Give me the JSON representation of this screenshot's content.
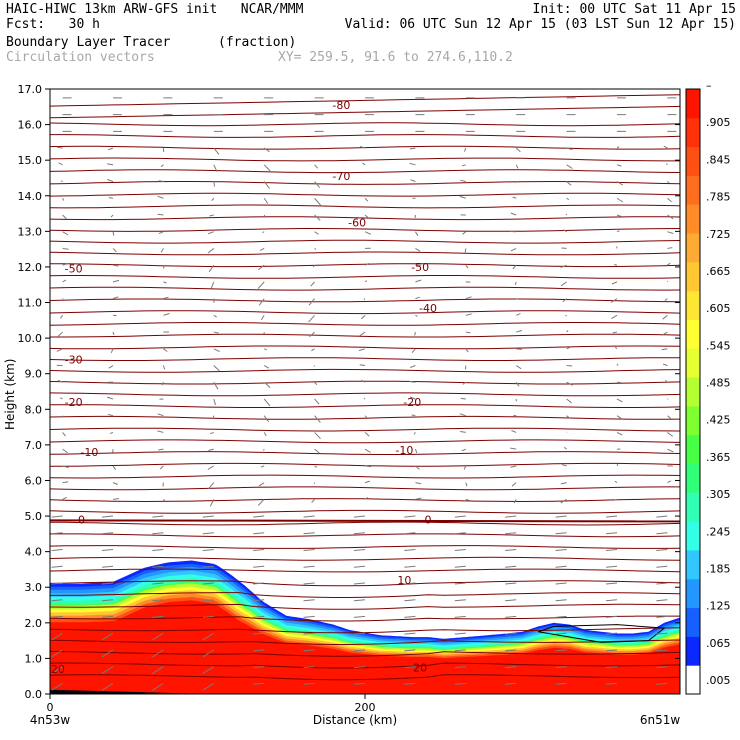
{
  "header": {
    "model": "HAIC-HIWC 13km ARW-GFS init   NCAR/MMM",
    "init": "Init: 00 UTC Sat 11 Apr 15",
    "fcst": "Fcst:   30 h",
    "valid": "Valid: 06 UTC Sun 12 Apr 15 (03 LST Sun 12 Apr 15)",
    "field": "Boundary Layer Tracer",
    "units": "(fraction)",
    "vectors": "Circulation vectors",
    "xy": "XY= 259.5, 91.6 to 274.6,110.2"
  },
  "colors": {
    "contour": "#7b0000",
    "vector": "#7a7a7a",
    "scale": [
      "#ffffff",
      "#0a28ff",
      "#1660ff",
      "#2496ff",
      "#32c8ff",
      "#32ffe6",
      "#32ffb4",
      "#32ff78",
      "#46ff46",
      "#7dff32",
      "#b4ff32",
      "#e6ff32",
      "#ffff32",
      "#ffe632",
      "#ffc832",
      "#ffaa32",
      "#ff8c28",
      "#ff6e1e",
      "#ff5014",
      "#ff320a",
      "#ff1400"
    ]
  },
  "chart_data": {
    "type": "heatmap",
    "title": "Boundary Layer Tracer",
    "units": "(fraction)",
    "xlabel": "Distance (km)",
    "ylabel": "Height (km)",
    "xlim": [
      0,
      400
    ],
    "ylim": [
      0,
      17
    ],
    "x_ticks": [
      {
        "v": 0,
        "label": "0"
      },
      {
        "v": 200,
        "label": "200"
      }
    ],
    "x_end_labels": {
      "left": "4n53w",
      "right": "6n51w"
    },
    "y_ticks": [
      0,
      1,
      2,
      3,
      4,
      5,
      6,
      7,
      8,
      9,
      10,
      11,
      12,
      13,
      14,
      15,
      16,
      17
    ],
    "y_tick_labels": [
      "0.0",
      "1.0",
      "2.0",
      "3.0",
      "4.0",
      "5.0",
      "6.0",
      "7.0",
      "8.0",
      "9.0",
      "10.0",
      "11.0",
      "12.0",
      "13.0",
      "14.0",
      "15.0",
      "16.0",
      "17.0"
    ],
    "colorbar_labels": [
      ".005",
      ".065",
      ".125",
      ".185",
      ".245",
      ".305",
      ".365",
      ".425",
      ".485",
      ".545",
      ".605",
      ".665",
      ".725",
      ".785",
      ".845",
      ".905",
      "–"
    ],
    "boundary_layer_top": {
      "x": [
        0,
        20,
        40,
        60,
        75,
        90,
        105,
        115,
        125,
        135,
        150,
        165,
        175,
        180,
        190,
        210,
        230,
        240,
        250,
        270,
        290,
        300,
        310,
        320,
        330,
        340,
        350,
        360,
        370,
        380,
        390,
        400
      ],
      "y": [
        3.1,
        3.1,
        3.15,
        3.55,
        3.7,
        3.75,
        3.65,
        3.35,
        3.0,
        2.6,
        2.2,
        2.1,
        2.0,
        1.95,
        1.8,
        1.65,
        1.6,
        1.6,
        1.55,
        1.62,
        1.7,
        1.75,
        1.9,
        2.0,
        1.95,
        1.8,
        1.75,
        1.7,
        1.7,
        1.75,
        2.0,
        2.15
      ]
    },
    "contour_labels": [
      {
        "x": 185,
        "y": 16.55,
        "label": "-80"
      },
      {
        "x": 185,
        "y": 14.55,
        "label": "-70"
      },
      {
        "x": 195,
        "y": 13.25,
        "label": "-60"
      },
      {
        "x": 15,
        "y": 11.95,
        "label": "-50"
      },
      {
        "x": 235,
        "y": 12.0,
        "label": "-50"
      },
      {
        "x": 240,
        "y": 10.85,
        "label": "-40"
      },
      {
        "x": 15,
        "y": 9.4,
        "label": "-30"
      },
      {
        "x": 15,
        "y": 8.2,
        "label": "-20"
      },
      {
        "x": 230,
        "y": 8.2,
        "label": "-20"
      },
      {
        "x": 25,
        "y": 6.8,
        "label": "-10"
      },
      {
        "x": 225,
        "y": 6.85,
        "label": "-10"
      },
      {
        "x": 20,
        "y": 4.9,
        "label": "0"
      },
      {
        "x": 240,
        "y": 4.9,
        "label": "0"
      },
      {
        "x": 225,
        "y": 3.2,
        "label": "10"
      },
      {
        "x": 235,
        "y": 0.75,
        "label": "20"
      },
      {
        "x": 5,
        "y": 0.7,
        "label": "20"
      }
    ]
  }
}
